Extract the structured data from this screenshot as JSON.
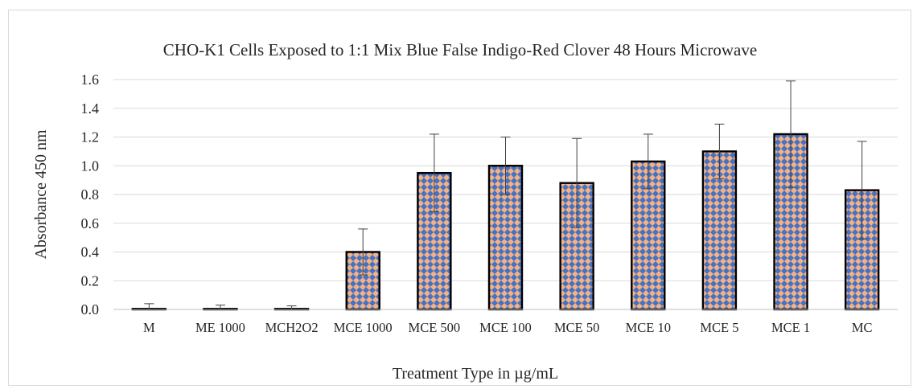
{
  "chart_data": {
    "type": "bar",
    "title": "CHO-K1 Cells Exposed to 1:1 Mix Blue False Indigo-Red Clover 48 Hours Microwave",
    "xlabel": "Treatment Type  in µg/mL",
    "ylabel": "Absorbance 450 nm",
    "ylim": [
      0,
      1.6
    ],
    "yticks": [
      "0.0",
      "0.2",
      "0.4",
      "0.6",
      "0.8",
      "1.0",
      "1.2",
      "1.4",
      "1.6"
    ],
    "grid": true,
    "legend": "none",
    "categories": [
      "M",
      "ME 1000",
      "MCH2O2",
      "MCE 1000",
      "MCE 500",
      "MCE 100",
      "MCE 50",
      "MCE 10",
      "MCE 5",
      "MCE 1",
      "MC"
    ],
    "values": [
      0.0,
      0.0,
      0.0,
      0.4,
      0.95,
      1.0,
      0.88,
      1.03,
      1.1,
      1.22,
      0.83
    ],
    "errors": [
      0.04,
      0.03,
      0.025,
      0.16,
      0.27,
      0.2,
      0.31,
      0.19,
      0.19,
      0.37,
      0.34
    ],
    "bar_colors": {
      "fill_a": "#f4b183",
      "fill_b": "#4472c4",
      "outline": "#000000"
    }
  }
}
